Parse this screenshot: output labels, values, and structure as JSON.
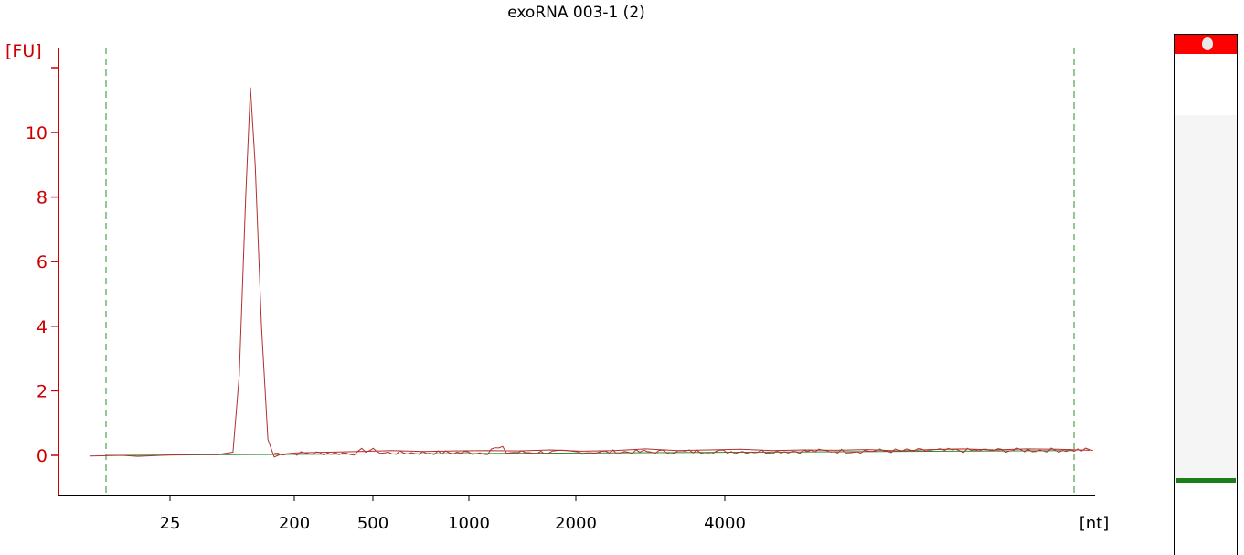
{
  "chart_data": {
    "type": "line",
    "title": "exoRNA 003-1 (2)",
    "ylabel": "[FU]",
    "xlabel": "[nt]",
    "ylim": [
      -1.2,
      12.5
    ],
    "yticks": [
      0,
      2,
      4,
      6,
      8,
      10
    ],
    "x_tick_labels": [
      "25",
      "200",
      "500",
      "1000",
      "2000",
      "4000"
    ],
    "colors": {
      "axis_y": "#cc0000",
      "trace": "#b03030",
      "baseline": "#2e8b2e",
      "marker_lines": "#2e8b2e",
      "axis_x": "#000000"
    },
    "series": [
      {
        "points": [
          [
            -0.5,
            -0.02
          ],
          [
            0.5,
            0.0
          ],
          [
            1.0,
            -0.03
          ],
          [
            2.0,
            0.01
          ],
          [
            3.0,
            0.03
          ],
          [
            3.5,
            0.02
          ],
          [
            4.0,
            0.1
          ],
          [
            4.2,
            2.5
          ],
          [
            4.4,
            8.0
          ],
          [
            4.55,
            11.4
          ],
          [
            4.7,
            9.0
          ],
          [
            4.9,
            4.0
          ],
          [
            5.1,
            0.5
          ],
          [
            5.3,
            -0.05
          ],
          [
            5.5,
            0.03
          ],
          [
            6,
            0.08
          ],
          [
            7,
            0.1
          ],
          [
            8,
            0.12
          ],
          [
            9,
            0.15
          ],
          [
            10,
            0.12
          ],
          [
            11,
            0.14
          ],
          [
            12,
            0.15
          ],
          [
            13,
            0.14
          ],
          [
            14,
            0.17
          ],
          [
            15,
            0.13
          ],
          [
            16,
            0.15
          ],
          [
            17,
            0.2
          ],
          [
            18,
            0.15
          ],
          [
            19,
            0.17
          ],
          [
            20,
            0.19
          ],
          [
            21,
            0.15
          ],
          [
            22,
            0.17
          ],
          [
            23,
            0.16
          ],
          [
            24,
            0.18
          ],
          [
            25,
            0.14
          ],
          [
            26,
            0.18
          ],
          [
            27,
            0.2
          ],
          [
            28,
            0.17
          ],
          [
            29,
            0.2
          ],
          [
            30,
            0.19
          ],
          [
            31,
            0.16
          ]
        ]
      }
    ],
    "marker_lines_x": [
      0,
      30.5
    ],
    "legend": "none",
    "grid": false
  },
  "gel": {
    "marker_band_color": "#ff0000",
    "sample_band_color": "#1a7f1a"
  }
}
